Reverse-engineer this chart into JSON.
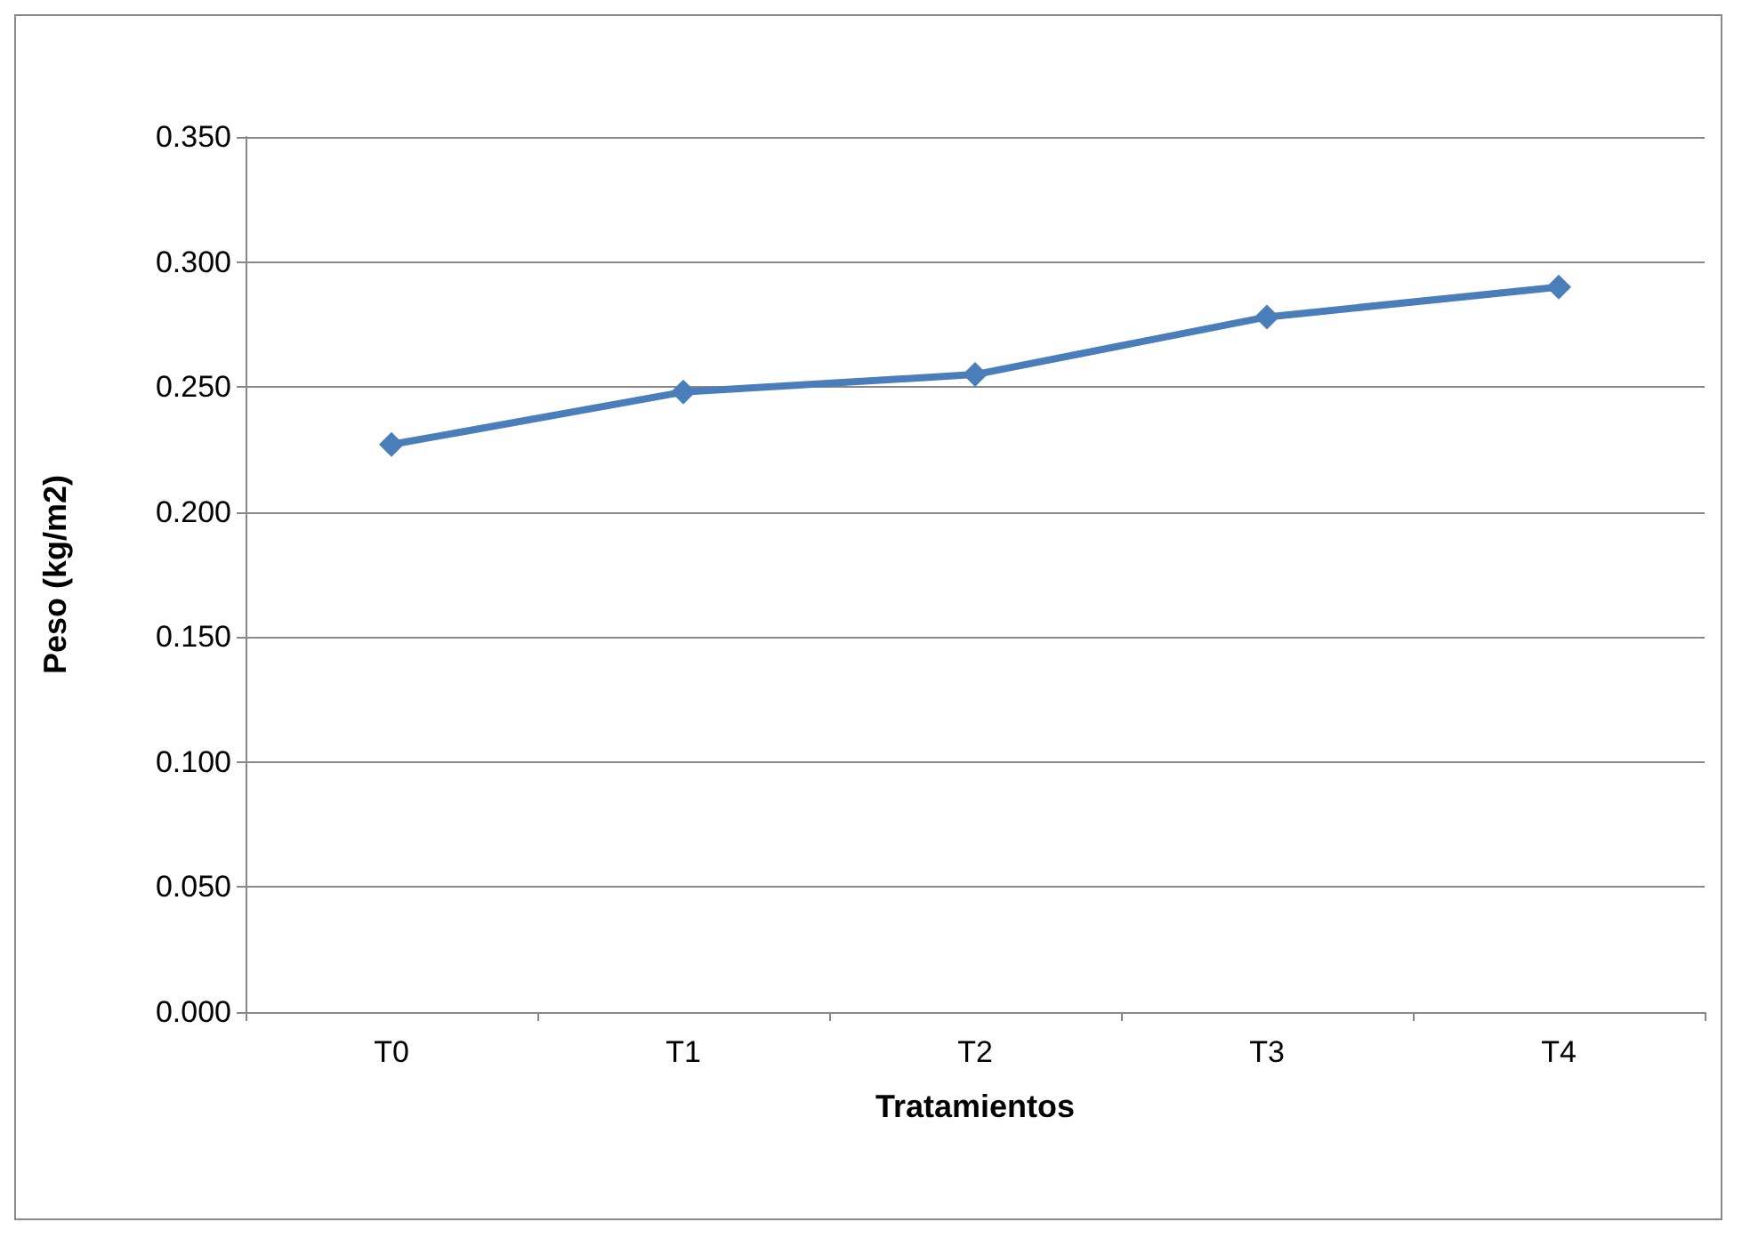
{
  "chart_data": {
    "type": "line",
    "xlabel": "Tratamientos",
    "ylabel": "Peso (kg/m2)",
    "categories": [
      "T0",
      "T1",
      "T2",
      "T3",
      "T4"
    ],
    "series": [
      {
        "color": "#4a7ebb",
        "values": [
          0.227,
          0.248,
          0.255,
          0.278,
          0.29
        ]
      }
    ],
    "ylim": [
      0,
      0.35
    ],
    "yticks": [
      {
        "value": 0,
        "label": "0.000"
      },
      {
        "value": 0.05,
        "label": "0.050"
      },
      {
        "value": 0.1,
        "label": "0.100"
      },
      {
        "value": 0.15,
        "label": "0.150"
      },
      {
        "value": 0.2,
        "label": "0.200"
      },
      {
        "value": 0.25,
        "label": "0.250"
      },
      {
        "value": 0.3,
        "label": "0.300"
      },
      {
        "value": 0.35,
        "label": "0.350"
      }
    ],
    "grid": "y",
    "marker": "diamond",
    "line_style": "solid"
  }
}
